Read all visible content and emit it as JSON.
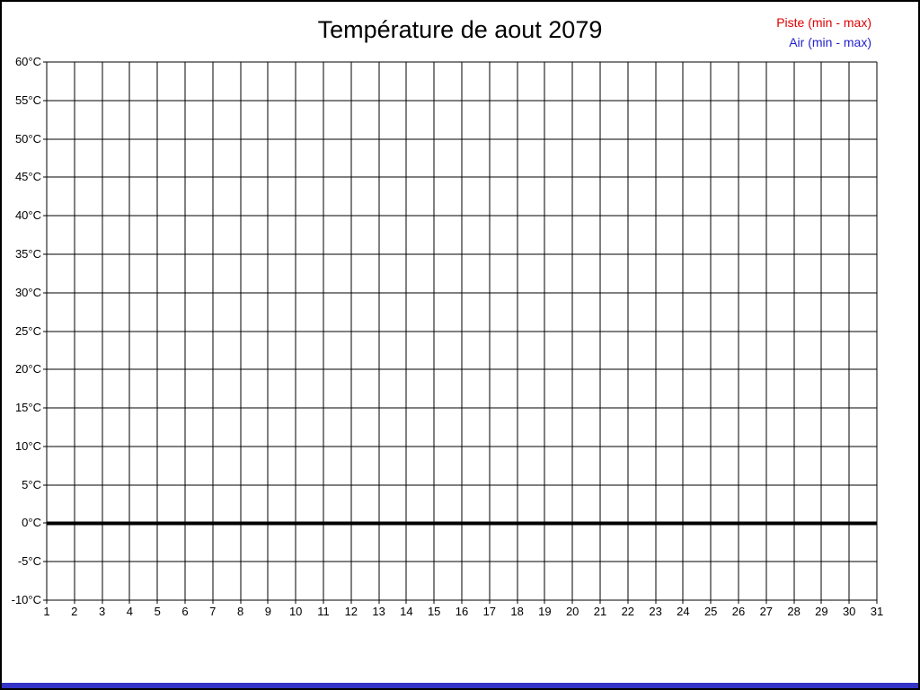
{
  "window": {
    "background": "#ffffff",
    "frame_border_color": "#000000"
  },
  "title": "Température de aout 2079",
  "legend": {
    "position": "top-right",
    "items": [
      {
        "label": "Piste (min - max)",
        "color": "#dd0000"
      },
      {
        "label": "Air (min - max)",
        "color": "#2222cc"
      }
    ]
  },
  "chart_data": {
    "type": "line",
    "title": "Température de aout 2079",
    "xlabel": "",
    "ylabel": "",
    "xlim": [
      1,
      31
    ],
    "ylim": [
      -10,
      60
    ],
    "y_step": 5,
    "grid": true,
    "grid_color": "#000000",
    "x_tick_labels": [
      "1",
      "2",
      "3",
      "4",
      "5",
      "6",
      "7",
      "8",
      "9",
      "10",
      "11",
      "12",
      "13",
      "14",
      "15",
      "16",
      "17",
      "18",
      "19",
      "20",
      "21",
      "22",
      "23",
      "24",
      "25",
      "26",
      "27",
      "28",
      "29",
      "30",
      "31"
    ],
    "y_tick_labels": [
      "60°C",
      "55°C",
      "50°C",
      "45°C",
      "40°C",
      "35°C",
      "30°C",
      "25°C",
      "20°C",
      "15°C",
      "10°C",
      "5°C",
      "0°C",
      "-5°C",
      "-10°C"
    ],
    "zero_line": {
      "y": 0,
      "color": "#000000",
      "stroke_width": 4
    },
    "series": [
      {
        "name": "Piste (min - max)",
        "color": "#dd0000",
        "values": []
      },
      {
        "name": "Air (min - max)",
        "color": "#2222cc",
        "values": []
      }
    ],
    "note": "no data plotted - empty grid"
  },
  "status_bar": {
    "color": "#3434c8"
  }
}
